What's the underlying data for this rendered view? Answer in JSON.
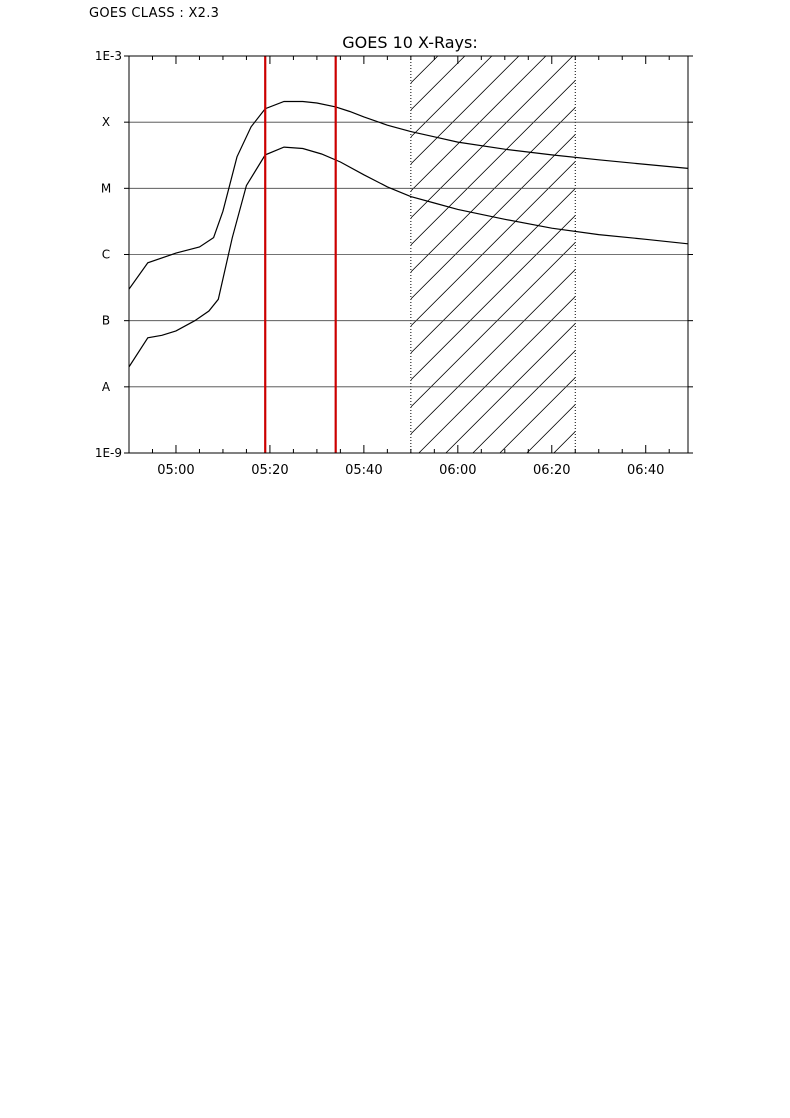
{
  "header": {
    "class_label": "GOES CLASS : X2.3"
  },
  "chart_data": {
    "type": "line",
    "title": "GOES 10 X-Rays:",
    "xlabel": "",
    "ylabel": "",
    "x_ticks": [
      "05:00",
      "05:20",
      "05:40",
      "06:00",
      "06:20",
      "06:40"
    ],
    "x_tick_minutes": [
      300,
      320,
      340,
      360,
      380,
      400
    ],
    "xlim_minutes": [
      290,
      409
    ],
    "y_scale": "log",
    "ylim": [
      1e-09,
      0.001
    ],
    "y_ticks": [
      {
        "label": "1E-3",
        "value": 0.001
      },
      {
        "label": "X",
        "value": 0.0001
      },
      {
        "label": "M",
        "value": 1e-05
      },
      {
        "label": "C",
        "value": 1e-06
      },
      {
        "label": "B",
        "value": 1e-07
      },
      {
        "label": "A",
        "value": 1e-08
      },
      {
        "label": "1E-9",
        "value": 1e-09
      }
    ],
    "grid_levels": [
      0.0001,
      1e-05,
      1e-06,
      1e-07,
      1e-08
    ],
    "series": [
      {
        "x": [
          290,
          294,
          300,
          305,
          308,
          310,
          313,
          316,
          319,
          323,
          327,
          330,
          334,
          337,
          340,
          345,
          350,
          355,
          360,
          370,
          380,
          390,
          400,
          409
        ],
        "y": [
          3e-07,
          7.5e-07,
          1.05e-06,
          1.3e-06,
          1.8e-06,
          4.5e-06,
          3e-05,
          8.5e-05,
          0.00016,
          0.000205,
          0.000205,
          0.000195,
          0.00017,
          0.000145,
          0.00012,
          9e-05,
          7.2e-05,
          6e-05,
          5e-05,
          3.9e-05,
          3.2e-05,
          2.7e-05,
          2.3e-05,
          2e-05
        ]
      },
      {
        "x": [
          290,
          294,
          297,
          300,
          304,
          307,
          309,
          312,
          315,
          319,
          323,
          327,
          331,
          335,
          340,
          345,
          350,
          355,
          360,
          370,
          380,
          390,
          400,
          409
        ],
        "y": [
          2e-08,
          5.5e-08,
          6e-08,
          7e-08,
          1e-07,
          1.4e-07,
          2.1e-07,
          1.8e-06,
          1.1e-05,
          3.2e-05,
          4.2e-05,
          4e-05,
          3.3e-05,
          2.5e-05,
          1.6e-05,
          1.05e-05,
          7.5e-06,
          6e-06,
          4.8e-06,
          3.4e-06,
          2.5e-06,
          2e-06,
          1.7e-06,
          1.45e-06
        ]
      }
    ],
    "markers": [
      {
        "x": 319,
        "color": "#cc0000"
      },
      {
        "x": 334,
        "color": "#cc0000"
      }
    ],
    "hatched_region": {
      "x_start": 350,
      "x_end": 385
    }
  }
}
